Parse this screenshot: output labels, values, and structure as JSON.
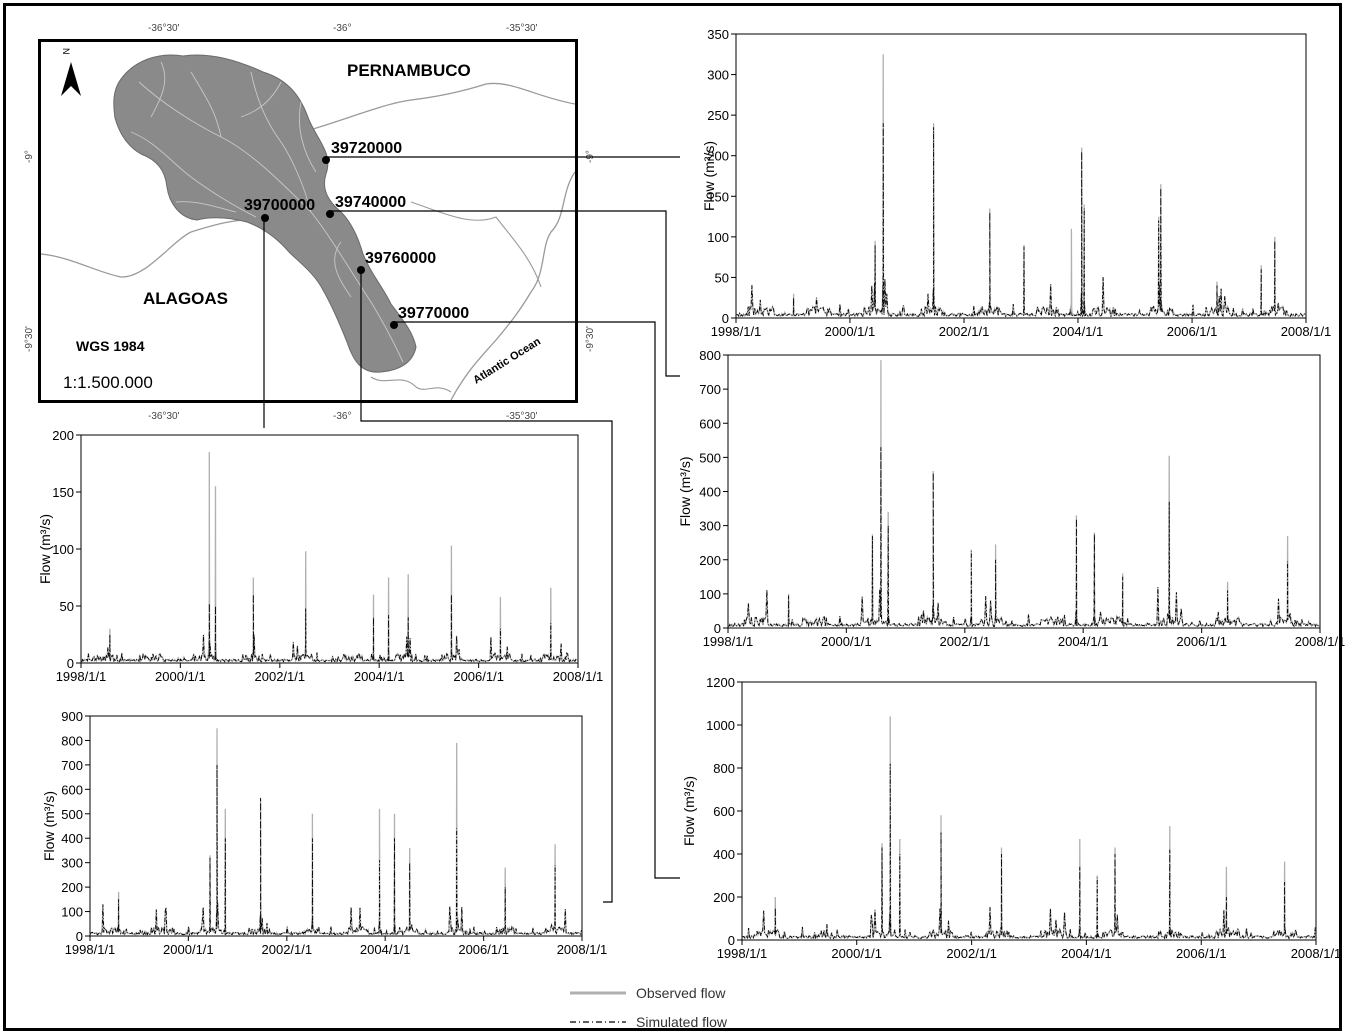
{
  "map": {
    "state_north": "PERNAMBUCO",
    "state_south": "ALAGOAS",
    "datum": "WGS 1984",
    "scale": "1:1.500.000",
    "ocean": "Atlantic Ocean",
    "north_arrow": "N",
    "grid_top": [
      "-36°30'",
      "-36°",
      "-35°30'"
    ],
    "grid_bottom": [
      "-36°30'",
      "-36°",
      "-35°30'"
    ],
    "grid_left": [
      "-9°",
      "-9°30'"
    ],
    "grid_right": [
      "-9°",
      "-9°30'"
    ],
    "stations": [
      "39720000",
      "39700000",
      "39740000",
      "39760000",
      "39770000"
    ],
    "colors": {
      "basin": "#8a8a8a",
      "rivers": "#c8c8c8",
      "boundaries": "#9a9a9a"
    }
  },
  "legend": {
    "observed": "Observed flow",
    "simulated": "Simulated flow",
    "observed_color": "#b0b0b0",
    "simulated_color": "#000000"
  },
  "chart_data": [
    {
      "type": "line",
      "station": "39720000",
      "ylabel": "Flow (m³/s)",
      "ylim": [
        0,
        350
      ],
      "yticks": [
        "0",
        "50",
        "100",
        "150",
        "200",
        "250",
        "300",
        "350"
      ],
      "xticks": [
        "1998/1/1",
        "2000/1/1",
        "2002/1/1",
        "2004/1/1",
        "2006/1/1",
        "2008/1/1"
      ],
      "xlim": [
        "1998-01-01",
        "2008-01-01"
      ],
      "series": [
        {
          "name": "Observed flow",
          "peaks": [
            [
              "1999-01-05",
              30
            ],
            [
              "2000-06-10",
              95
            ],
            [
              "2000-08-01",
              325
            ],
            [
              "2001-06-20",
              240
            ],
            [
              "2002-06-15",
              135
            ],
            [
              "2003-01-20",
              90
            ],
            [
              "2003-11-20",
              110
            ],
            [
              "2004-01-25",
              210
            ],
            [
              "2004-02-10",
              140
            ],
            [
              "2005-06-15",
              165
            ],
            [
              "2005-06-01",
              125
            ],
            [
              "2006-06-10",
              45
            ],
            [
              "2007-06-15",
              100
            ],
            [
              "2007-03-20",
              65
            ]
          ]
        },
        {
          "name": "Simulated flow",
          "peaks": [
            [
              "1999-01-05",
              25
            ],
            [
              "2000-06-10",
              90
            ],
            [
              "2000-08-01",
              240
            ],
            [
              "2001-06-20",
              235
            ],
            [
              "2002-06-15",
              130
            ],
            [
              "2003-01-20",
              88
            ],
            [
              "2004-01-25",
              205
            ],
            [
              "2004-02-10",
              135
            ],
            [
              "2005-06-15",
              160
            ],
            [
              "2005-06-01",
              120
            ],
            [
              "2006-06-10",
              40
            ],
            [
              "2007-06-15",
              95
            ],
            [
              "2007-03-20",
              60
            ]
          ]
        }
      ]
    },
    {
      "type": "line",
      "station": "39740000",
      "ylabel": "Flow (m³/s)",
      "ylim": [
        0,
        800
      ],
      "yticks": [
        "0",
        "100",
        "200",
        "300",
        "400",
        "500",
        "600",
        "700",
        "800"
      ],
      "xticks": [
        "1998/1/1",
        "2000/1/1",
        "2002/1/1",
        "2004/1/1",
        "2006/1/1",
        "2008/1/1"
      ],
      "xlim": [
        "1998-01-01",
        "2008-01-01"
      ],
      "series": [
        {
          "name": "Observed flow",
          "peaks": [
            [
              "1999-01-10",
              100
            ],
            [
              "2000-06-10",
              275
            ],
            [
              "2000-08-01",
              785
            ],
            [
              "2000-09-15",
              340
            ],
            [
              "2001-06-20",
              460
            ],
            [
              "2002-02-10",
              230
            ],
            [
              "2002-07-10",
              245
            ],
            [
              "2003-11-20",
              330
            ],
            [
              "2004-03-10",
              280
            ],
            [
              "2004-09-01",
              160
            ],
            [
              "2005-06-15",
              505
            ],
            [
              "2006-06-10",
              135
            ],
            [
              "2007-06-15",
              270
            ]
          ]
        },
        {
          "name": "Simulated flow",
          "peaks": [
            [
              "1999-01-10",
              95
            ],
            [
              "2000-06-10",
              270
            ],
            [
              "2000-08-01",
              530
            ],
            [
              "2000-09-15",
              300
            ],
            [
              "2001-06-20",
              455
            ],
            [
              "2002-02-10",
              225
            ],
            [
              "2002-07-10",
              200
            ],
            [
              "2003-11-20",
              320
            ],
            [
              "2004-03-10",
              275
            ],
            [
              "2004-09-01",
              150
            ],
            [
              "2005-06-15",
              370
            ],
            [
              "2006-06-10",
              110
            ],
            [
              "2007-06-15",
              195
            ]
          ]
        }
      ]
    },
    {
      "type": "line",
      "station": "39770000",
      "ylabel": "Flow (m³/s)",
      "ylim": [
        0,
        1200
      ],
      "yticks": [
        "0",
        "200",
        "400",
        "600",
        "800",
        "1000",
        "1200"
      ],
      "xticks": [
        "1998/1/1",
        "2000/1/1",
        "2002/1/1",
        "2004/1/1",
        "2006/1/1",
        "2008/1/1"
      ],
      "xlim": [
        "1998-01-01",
        "2008-01-01"
      ],
      "series": [
        {
          "name": "Observed flow",
          "peaks": [
            [
              "1998-08-01",
              200
            ],
            [
              "2000-06-10",
              450
            ],
            [
              "2000-08-01",
              1040
            ],
            [
              "2000-10-01",
              470
            ],
            [
              "2001-06-20",
              580
            ],
            [
              "2002-07-10",
              430
            ],
            [
              "2003-11-20",
              470
            ],
            [
              "2004-03-10",
              300
            ],
            [
              "2004-07-01",
              430
            ],
            [
              "2005-06-15",
              530
            ],
            [
              "2006-06-10",
              340
            ],
            [
              "2007-06-15",
              365
            ]
          ]
        },
        {
          "name": "Simulated flow",
          "peaks": [
            [
              "1998-08-01",
              150
            ],
            [
              "2000-06-10",
              430
            ],
            [
              "2000-08-01",
              820
            ],
            [
              "2000-10-01",
              400
            ],
            [
              "2001-06-20",
              500
            ],
            [
              "2002-07-10",
              400
            ],
            [
              "2003-11-20",
              340
            ],
            [
              "2004-03-10",
              290
            ],
            [
              "2004-07-01",
              400
            ],
            [
              "2005-06-15",
              420
            ],
            [
              "2006-06-10",
              200
            ],
            [
              "2007-06-15",
              270
            ]
          ]
        }
      ]
    },
    {
      "type": "line",
      "station": "39700000",
      "ylabel": "Flow (m³/s)",
      "ylim": [
        0,
        200
      ],
      "yticks": [
        "0",
        "50",
        "100",
        "150",
        "200"
      ],
      "xticks": [
        "1998/1/1",
        "2000/1/1",
        "2002/1/1",
        "2004/1/1",
        "2006/1/1",
        "2008/1/1"
      ],
      "xlim": [
        "1998-01-01",
        "2008-01-01"
      ],
      "series": [
        {
          "name": "Observed flow",
          "peaks": [
            [
              "1998-08-01",
              30
            ],
            [
              "2000-08-01",
              185
            ],
            [
              "2000-09-15",
              155
            ],
            [
              "2001-06-20",
              75
            ],
            [
              "2002-07-10",
              98
            ],
            [
              "2003-11-20",
              60
            ],
            [
              "2004-03-10",
              75
            ],
            [
              "2004-08-01",
              78
            ],
            [
              "2005-06-15",
              103
            ],
            [
              "2006-06-10",
              58
            ],
            [
              "2007-06-15",
              66
            ]
          ]
        },
        {
          "name": "Simulated flow",
          "peaks": [
            [
              "1998-08-01",
              25
            ],
            [
              "2000-08-01",
              52
            ],
            [
              "2000-09-15",
              50
            ],
            [
              "2001-06-20",
              60
            ],
            [
              "2002-07-10",
              48
            ],
            [
              "2003-11-20",
              40
            ],
            [
              "2004-03-10",
              42
            ],
            [
              "2004-08-01",
              40
            ],
            [
              "2005-06-15",
              60
            ],
            [
              "2006-06-10",
              30
            ],
            [
              "2007-06-15",
              35
            ]
          ]
        }
      ]
    },
    {
      "type": "line",
      "station": "39760000",
      "ylabel": "Flow (m³/s)",
      "ylim": [
        0,
        900
      ],
      "yticks": [
        "0",
        "100",
        "200",
        "300",
        "400",
        "500",
        "600",
        "700",
        "800",
        "900"
      ],
      "xticks": [
        "1998/1/1",
        "2000/1/1",
        "2002/1/1",
        "2004/1/1",
        "2006/1/1",
        "2008/1/1"
      ],
      "xlim": [
        "1998-01-01",
        "2008-01-01"
      ],
      "series": [
        {
          "name": "Observed flow",
          "peaks": [
            [
              "1998-08-01",
              180
            ],
            [
              "2000-06-10",
              330
            ],
            [
              "2000-08-01",
              850
            ],
            [
              "2000-10-01",
              520
            ],
            [
              "2001-06-20",
              560
            ],
            [
              "2002-07-10",
              500
            ],
            [
              "2003-11-20",
              520
            ],
            [
              "2004-03-10",
              500
            ],
            [
              "2004-07-01",
              360
            ],
            [
              "2005-06-15",
              790
            ],
            [
              "2006-06-10",
              280
            ],
            [
              "2007-06-15",
              375
            ]
          ]
        },
        {
          "name": "Simulated flow",
          "peaks": [
            [
              "1998-08-01",
              150
            ],
            [
              "2000-06-10",
              320
            ],
            [
              "2000-08-01",
              700
            ],
            [
              "2000-10-01",
              400
            ],
            [
              "2001-06-20",
              565
            ],
            [
              "2002-07-10",
              400
            ],
            [
              "2003-11-20",
              310
            ],
            [
              "2004-03-10",
              400
            ],
            [
              "2004-07-01",
              300
            ],
            [
              "2005-06-15",
              440
            ],
            [
              "2006-06-10",
              200
            ],
            [
              "2007-06-15",
              290
            ]
          ]
        }
      ]
    }
  ]
}
